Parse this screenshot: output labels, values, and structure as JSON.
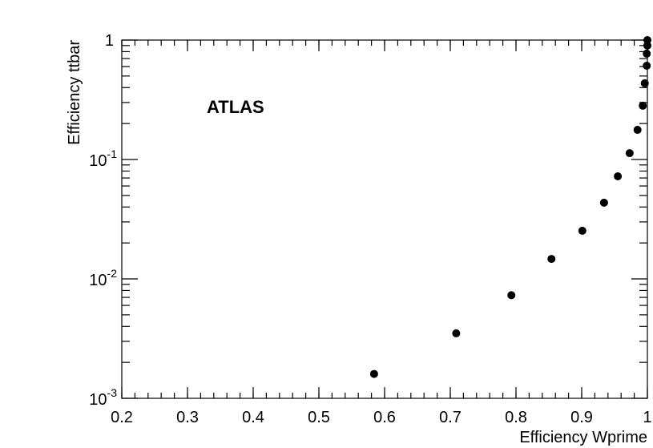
{
  "chart_data": {
    "type": "scatter",
    "annotation": "ATLAS",
    "x_label": "Efficiency Wprime",
    "y_label": "Efficiency ttbar",
    "log_y": true,
    "color": "#000000",
    "x": [
      0.584,
      0.709,
      0.793,
      0.854,
      0.901,
      0.934,
      0.955,
      0.973,
      0.985,
      0.993,
      0.996,
      0.999,
      0.999,
      1.0,
      1.0
    ],
    "values": [
      0.0016,
      0.0035,
      0.0073,
      0.0147,
      0.0253,
      0.0435,
      0.0723,
      0.113,
      0.177,
      0.282,
      0.435,
      0.61,
      0.77,
      0.9,
      1.0
    ],
    "xlim": [
      0.2,
      1
    ],
    "ylim": [
      0.001,
      1
    ],
    "xticks": [
      0.2,
      0.3,
      0.4,
      0.5,
      0.6,
      0.7,
      0.8,
      0.9,
      1
    ],
    "yticks": [
      {
        "value": 0.001,
        "label": "10",
        "exponent": "-3"
      },
      {
        "value": 0.01,
        "label": "10",
        "exponent": "-2"
      },
      {
        "value": 0.1,
        "label": "10",
        "exponent": "-1"
      },
      1
    ]
  }
}
